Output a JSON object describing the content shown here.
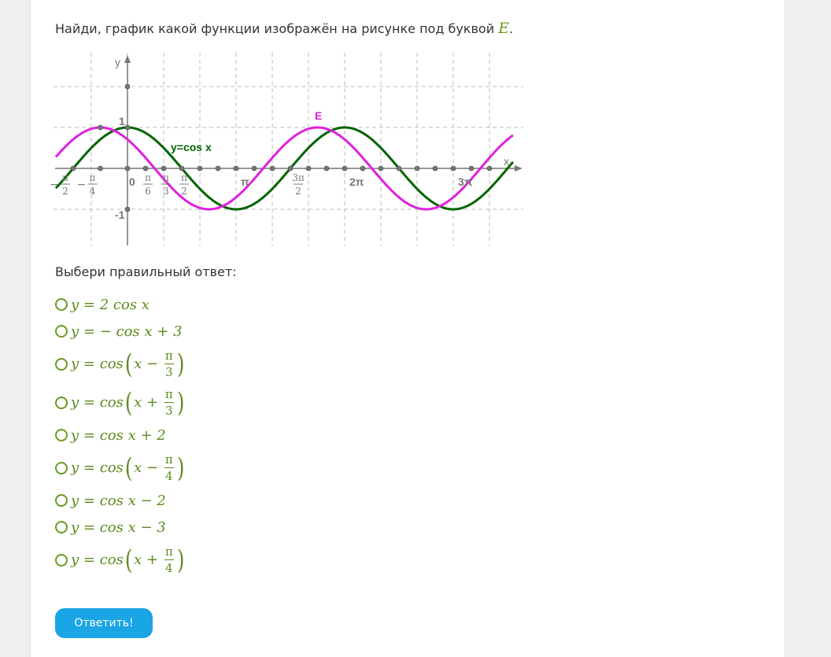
{
  "question": {
    "text": "Найди, график какой функции изображён на рисунке под буквой ",
    "letter": "E",
    "end": "."
  },
  "chart_data": {
    "type": "line",
    "xlabel": "x",
    "ylabel": "y",
    "xlim": [
      -1.7,
      3.55
    ],
    "xlim_unit": "π",
    "ylim": [
      -1.9,
      2.7
    ],
    "grid": true,
    "x_tick_labels": [
      "−π/2",
      "−π/4",
      "0",
      "π/6",
      "π/3",
      "π/2",
      "π",
      "3π/2",
      "2π",
      "3π"
    ],
    "y_tick_labels": [
      "1",
      "-1"
    ],
    "series": [
      {
        "name": "y=cos x",
        "function": "cos(x)",
        "color": "#006400"
      },
      {
        "name": "E",
        "function": "cos(x+π/4)",
        "color": "#e020e0"
      }
    ]
  },
  "prompt": "Выбери правильный ответ:",
  "options": [
    {
      "pre": "y = 2 cos x"
    },
    {
      "pre": "y = − cos x + 3"
    },
    {
      "pre": "y = cos",
      "inner": "x − ",
      "num": "π",
      "den": "3"
    },
    {
      "pre": "y = cos",
      "inner": "x + ",
      "num": "π",
      "den": "3"
    },
    {
      "pre": "y = cos x + 2"
    },
    {
      "pre": "y = cos",
      "inner": "x − ",
      "num": "π",
      "den": "4"
    },
    {
      "pre": "y = cos x − 2"
    },
    {
      "pre": "y = cos x − 3"
    },
    {
      "pre": "y = cos",
      "inner": "x + ",
      "num": "π",
      "den": "4"
    }
  ],
  "submit_label": "Ответить!"
}
